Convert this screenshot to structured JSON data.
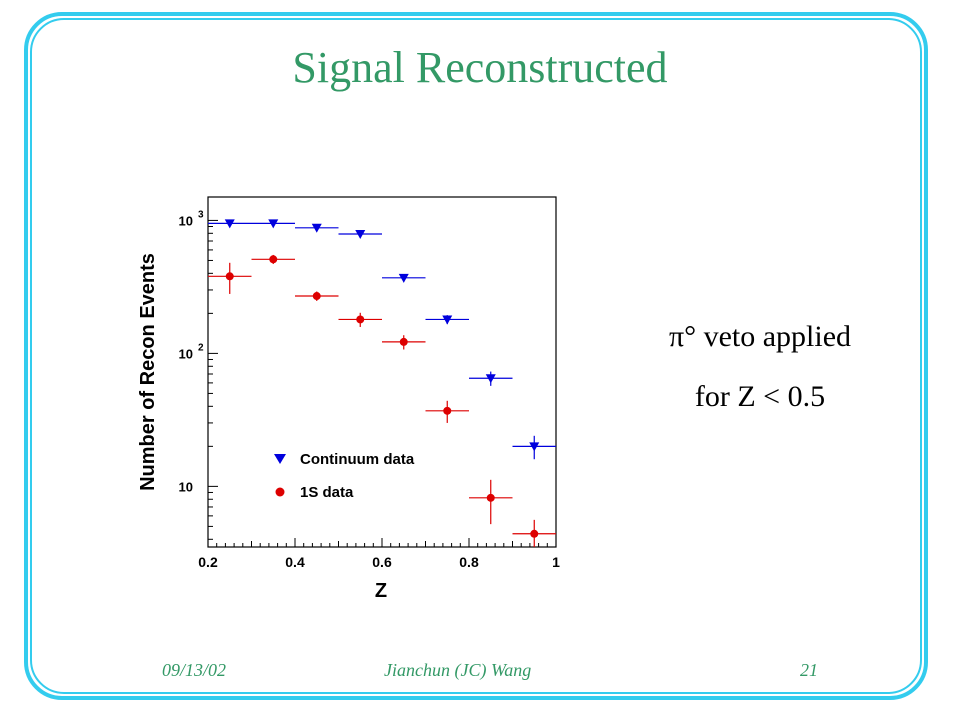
{
  "slide": {
    "title": "Signal Reconstructed",
    "notes": [
      "π° veto applied",
      "for Z < 0.5"
    ],
    "footer": {
      "date": "09/13/02",
      "author": "Jianchun (JC) Wang",
      "page": "21"
    }
  },
  "colors": {
    "title": "#339966",
    "frame": "#33ccee",
    "continuum": "#0000dd",
    "one_s": "#dd0000"
  },
  "chart_data": {
    "type": "scatter",
    "xlabel": "Z",
    "ylabel": "Number of Recon Events",
    "xlim": [
      0.2,
      1.0
    ],
    "ylim": [
      3.5,
      1500
    ],
    "yscale": "log",
    "x_ticks": [
      "0.2",
      "0.4",
      "0.6",
      "0.8",
      "1"
    ],
    "y_ticks": [
      {
        "value": 10,
        "label": "10",
        "sup": ""
      },
      {
        "value": 100,
        "label": "10",
        "sup": "2"
      },
      {
        "value": 1000,
        "label": "10",
        "sup": "3"
      }
    ],
    "legend_position": "bottom-left",
    "series": [
      {
        "name": "Continuum data",
        "marker": "triangle-down",
        "x": [
          0.25,
          0.35,
          0.45,
          0.55,
          0.65,
          0.75,
          0.85,
          0.95
        ],
        "xerr": 0.05,
        "y": [
          950,
          950,
          880,
          790,
          370,
          180,
          65,
          20
        ],
        "yerr": [
          30,
          30,
          30,
          28,
          20,
          14,
          8,
          4
        ]
      },
      {
        "name": "1S data",
        "marker": "circle",
        "x": [
          0.25,
          0.35,
          0.45,
          0.55,
          0.65,
          0.75,
          0.85,
          0.95
        ],
        "xerr": 0.05,
        "y": [
          380,
          510,
          270,
          180,
          122,
          37,
          8.2,
          4.4
        ],
        "yerr": [
          100,
          40,
          22,
          22,
          15,
          7,
          3,
          1.2
        ]
      }
    ]
  }
}
